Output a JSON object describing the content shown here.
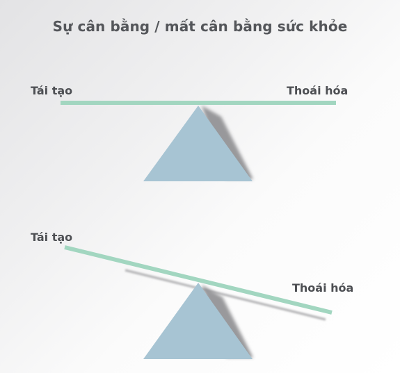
{
  "title": "Sự cân bằng / mất cân bằng sức khỏe",
  "colors": {
    "beam": "#a2d6c0",
    "fulcrum": "#a7c4d3",
    "shadow": "#b9b9bb",
    "text": "#4d4f53"
  },
  "balanced": {
    "left_label": "Tái tạo",
    "right_label": "Thoái hóa"
  },
  "imbalanced": {
    "left_label": "Tái tạo",
    "right_label": "Thoái hóa"
  }
}
